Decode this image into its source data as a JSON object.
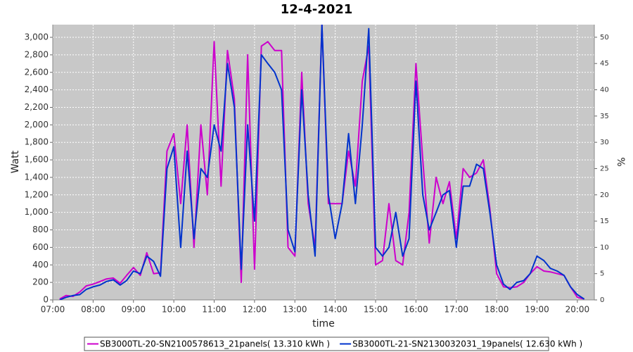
{
  "chart_data": {
    "type": "line",
    "title": "12-4-2021",
    "x_label": "time",
    "y_label": "Watt",
    "y2_label": "%",
    "x": [
      7.17,
      7.33,
      7.5,
      7.67,
      7.83,
      8.0,
      8.17,
      8.33,
      8.5,
      8.67,
      8.83,
      9.0,
      9.17,
      9.33,
      9.5,
      9.67,
      9.83,
      10.0,
      10.17,
      10.33,
      10.5,
      10.67,
      10.83,
      11.0,
      11.17,
      11.33,
      11.5,
      11.67,
      11.83,
      12.0,
      12.17,
      12.33,
      12.5,
      12.67,
      12.83,
      13.0,
      13.17,
      13.33,
      13.5,
      13.67,
      13.83,
      14.0,
      14.17,
      14.33,
      14.5,
      14.67,
      14.83,
      15.0,
      15.17,
      15.33,
      15.5,
      15.67,
      15.83,
      16.0,
      16.17,
      16.33,
      16.5,
      16.67,
      16.83,
      17.0,
      17.17,
      17.33,
      17.5,
      17.67,
      17.83,
      18.0,
      18.17,
      18.33,
      18.5,
      18.67,
      18.83,
      19.0,
      19.17,
      19.33,
      19.5,
      19.67,
      19.83,
      20.0,
      20.17
    ],
    "series": [
      {
        "name": "SB3000TL-20-SN2100578613_21panels( 13.310 kWh )",
        "color": "#cc00cc",
        "values": [
          10,
          50,
          40,
          90,
          160,
          180,
          210,
          240,
          250,
          190,
          280,
          370,
          280,
          540,
          300,
          310,
          1700,
          1900,
          1100,
          2000,
          600,
          2000,
          1200,
          2950,
          1300,
          2850,
          2300,
          200,
          2800,
          350,
          2900,
          2950,
          2850,
          2850,
          600,
          500,
          2600,
          1100,
          600,
          3150,
          1100,
          1100,
          1100,
          1700,
          1300,
          2500,
          2900,
          400,
          450,
          1100,
          450,
          400,
          1000,
          2700,
          1600,
          650,
          1400,
          1100,
          1350,
          700,
          1500,
          1400,
          1450,
          1600,
          1050,
          300,
          150,
          140,
          150,
          200,
          300,
          380,
          330,
          320,
          300,
          280,
          150,
          30,
          10
        ]
      },
      {
        "name": "SB3000TL-21-SN2130032031_19panels( 12.630 kWh )",
        "color": "#0033cc",
        "values": [
          0,
          30,
          50,
          60,
          120,
          150,
          170,
          210,
          230,
          170,
          220,
          330,
          300,
          500,
          440,
          270,
          1500,
          1750,
          600,
          1700,
          700,
          1500,
          1400,
          2000,
          1700,
          2700,
          2200,
          350,
          2000,
          900,
          2800,
          2700,
          2600,
          2400,
          800,
          550,
          2400,
          1200,
          500,
          3150,
          1200,
          700,
          1100,
          1900,
          1100,
          2000,
          3100,
          600,
          500,
          600,
          1000,
          500,
          700,
          2500,
          1200,
          800,
          1000,
          1200,
          1250,
          600,
          1300,
          1300,
          1550,
          1500,
          1000,
          400,
          180,
          120,
          200,
          220,
          300,
          500,
          450,
          360,
          330,
          280,
          150,
          60,
          10
        ]
      }
    ],
    "xlim": [
      7,
      20.42
    ],
    "xticks": [
      {
        "value": 7,
        "label": "07:00"
      },
      {
        "value": 8,
        "label": "08:00"
      },
      {
        "value": 9,
        "label": "09:00"
      },
      {
        "value": 10,
        "label": "10:00"
      },
      {
        "value": 11,
        "label": "11:00"
      },
      {
        "value": 12,
        "label": "12:00"
      },
      {
        "value": 13,
        "label": "13:00"
      },
      {
        "value": 14,
        "label": "14:00"
      },
      {
        "value": 15,
        "label": "15:00"
      },
      {
        "value": 16,
        "label": "16:00"
      },
      {
        "value": 17,
        "label": "17:00"
      },
      {
        "value": 18,
        "label": "18:00"
      },
      {
        "value": 19,
        "label": "19:00"
      },
      {
        "value": 20,
        "label": "20:00"
      }
    ],
    "ylim": [
      0,
      3145
    ],
    "yticks": [
      0,
      200,
      400,
      600,
      800,
      {
        "value": 1000,
        "label": "1,000"
      },
      {
        "value": 1200,
        "label": "1,200"
      },
      {
        "value": 1400,
        "label": "1,400"
      },
      {
        "value": 1600,
        "label": "1,600"
      },
      {
        "value": 1800,
        "label": "1,800"
      },
      {
        "value": 2000,
        "label": "2,000"
      },
      {
        "value": 2200,
        "label": "2,200"
      },
      {
        "value": 2400,
        "label": "2,400"
      },
      {
        "value": 2600,
        "label": "2,600"
      },
      {
        "value": 2800,
        "label": "2,800"
      },
      {
        "value": 3000,
        "label": "3,000"
      }
    ],
    "y2lim": [
      0,
      52.4
    ],
    "y2ticks": [
      0,
      5,
      10,
      15,
      20,
      25,
      30,
      35,
      40,
      45,
      50
    ],
    "grid": true,
    "legend": "bottom"
  }
}
